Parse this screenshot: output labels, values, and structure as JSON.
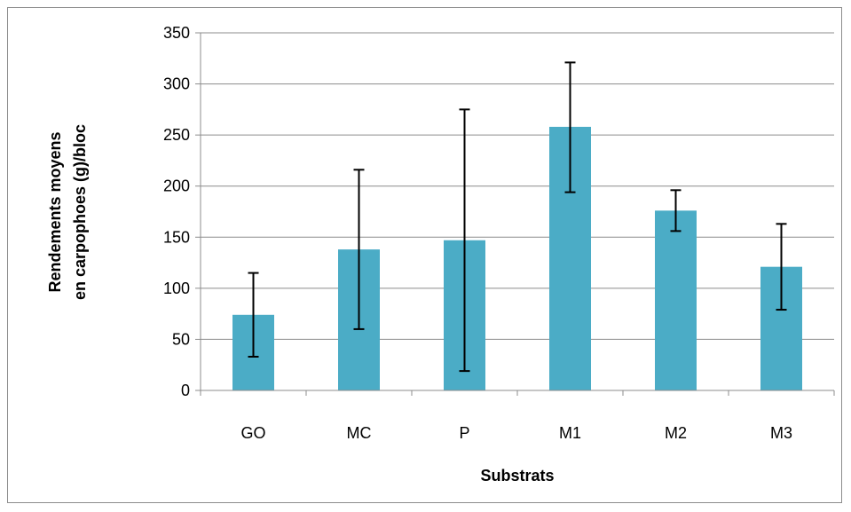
{
  "chart_data": {
    "type": "bar",
    "title": "",
    "xlabel": "Substrats",
    "ylabel_lines": [
      "Rendements moyens",
      "en carpophoes (g)/bloc"
    ],
    "categories": [
      "GO",
      "MC",
      "P",
      "M1",
      "M2",
      "M3"
    ],
    "values": [
      74,
      138,
      147,
      258,
      176,
      121
    ],
    "error_low": [
      33,
      60,
      19,
      194,
      156,
      79
    ],
    "error_high": [
      115,
      216,
      275,
      321,
      196,
      163
    ],
    "ylim": [
      0,
      350
    ],
    "yticks": [
      0,
      50,
      100,
      150,
      200,
      250,
      300,
      350
    ],
    "grid": true,
    "legend": "none",
    "colors": {
      "bar": "#4bacc6",
      "grid": "#8c8c8c",
      "axis": "#8c8c8c",
      "error": "#000000"
    }
  }
}
